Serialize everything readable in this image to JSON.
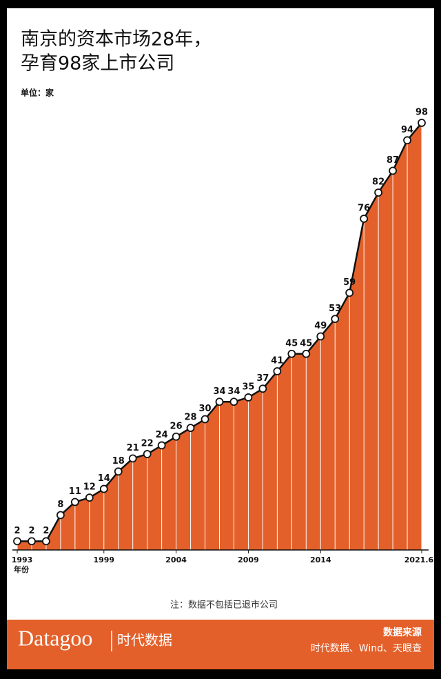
{
  "chart_data": {
    "type": "area",
    "title": [
      "南京的资本市场28年，",
      "孕育98家上市公司"
    ],
    "unit_label": "单位：家",
    "x_label": "年份",
    "categories": [
      "1993",
      null,
      null,
      null,
      null,
      null,
      "1999",
      null,
      null,
      null,
      null,
      "2004",
      null,
      null,
      null,
      null,
      "2009",
      null,
      null,
      null,
      null,
      "2014",
      null,
      null,
      null,
      null,
      null,
      null,
      "2021.6"
    ],
    "values": [
      2,
      2,
      2,
      8,
      11,
      12,
      14,
      18,
      21,
      22,
      24,
      26,
      28,
      30,
      34,
      34,
      35,
      37,
      41,
      45,
      45,
      49,
      53,
      59,
      76,
      82,
      87,
      94,
      98
    ],
    "color": "#e4602a",
    "line_color": "#111111",
    "note": "注：数据不包括已退市公司"
  },
  "footer": {
    "brand": "Datagoo",
    "brand_cn": "时代数据",
    "source_title": "数据来源",
    "source": "时代数据、Wind、天眼查"
  }
}
